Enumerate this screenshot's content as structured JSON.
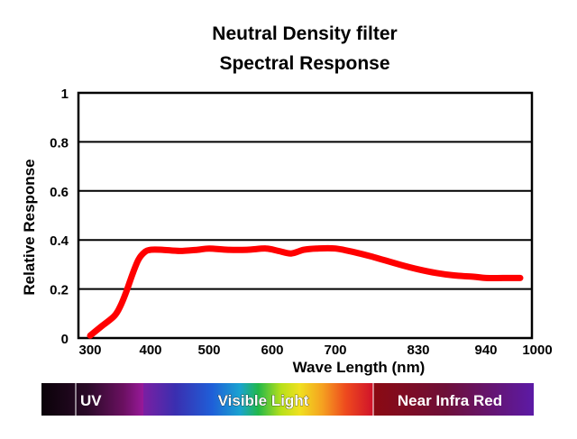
{
  "chart_data": {
    "type": "line",
    "title": "Neutral Density filter",
    "subtitle": "Spectral Response",
    "xlabel": "Wave Length (nm)",
    "ylabel": "Relative Response",
    "ylim": [
      0,
      1
    ],
    "y_ticks": [
      "0",
      "0.2",
      "0.4",
      "0.6",
      "0.8",
      "1"
    ],
    "x_ticks": [
      "300",
      "400",
      "500",
      "600",
      "700",
      "830",
      "940",
      "1000"
    ],
    "grid": "horizontal",
    "line_color": "#ff0000",
    "series": [
      {
        "x": [
          300,
          320,
          340,
          350,
          360,
          370,
          380,
          390,
          400,
          420,
          450,
          480,
          500,
          530,
          560,
          590,
          610,
          630,
          650,
          670,
          700,
          730,
          760,
          800,
          830,
          860,
          890,
          920,
          940,
          960,
          980
        ],
        "y": [
          0.01,
          0.05,
          0.09,
          0.13,
          0.19,
          0.26,
          0.32,
          0.35,
          0.36,
          0.36,
          0.355,
          0.36,
          0.365,
          0.36,
          0.36,
          0.365,
          0.355,
          0.345,
          0.36,
          0.365,
          0.365,
          0.35,
          0.33,
          0.3,
          0.28,
          0.265,
          0.255,
          0.25,
          0.245,
          0.245,
          0.245
        ]
      }
    ]
  },
  "spectrum_bar": {
    "labels": [
      {
        "key": "uv",
        "text": "UV"
      },
      {
        "key": "visible",
        "text": "Visible Light"
      },
      {
        "key": "nir",
        "text": "Near Infra Red"
      }
    ]
  }
}
